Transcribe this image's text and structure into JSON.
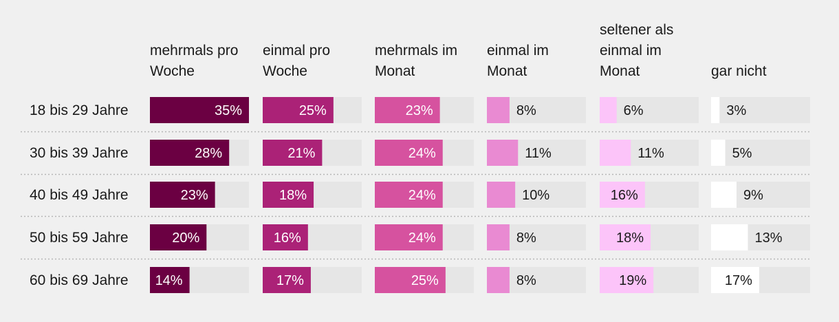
{
  "chart_data": {
    "type": "bar",
    "categories": [
      "18 bis 29 Jahre",
      "30 bis 39 Jahre",
      "40 bis 49 Jahre",
      "50 bis 59 Jahre",
      "60 bis 69 Jahre"
    ],
    "unit": "%",
    "xlim": [
      0,
      35
    ],
    "series": [
      {
        "name": "mehrmals pro Woche",
        "header_lines": [
          "mehrmals pro",
          "Woche"
        ],
        "color": "#6b0042",
        "values": [
          35,
          28,
          23,
          20,
          14
        ]
      },
      {
        "name": "einmal pro Woche",
        "header_lines": [
          "einmal pro",
          "Woche"
        ],
        "color": "#ab2277",
        "values": [
          25,
          21,
          18,
          16,
          17
        ]
      },
      {
        "name": "mehrmals im Monat",
        "header_lines": [
          "mehrmals im",
          "Monat"
        ],
        "color": "#d6529f",
        "values": [
          23,
          24,
          24,
          24,
          25
        ]
      },
      {
        "name": "einmal im Monat",
        "header_lines": [
          "einmal im",
          "Monat"
        ],
        "color": "#e98ad2",
        "values": [
          8,
          11,
          10,
          8,
          8
        ]
      },
      {
        "name": "seltener als einmal im Monat",
        "header_lines": [
          "seltener als",
          "einmal im",
          "Monat"
        ],
        "color": "#fcc4f9",
        "values": [
          6,
          11,
          16,
          18,
          19
        ]
      },
      {
        "name": "gar nicht",
        "header_lines": [
          "gar nicht"
        ],
        "color": "#ffffff",
        "values": [
          3,
          5,
          9,
          13,
          17
        ]
      }
    ],
    "grid": false,
    "legend": "column headers on top"
  }
}
